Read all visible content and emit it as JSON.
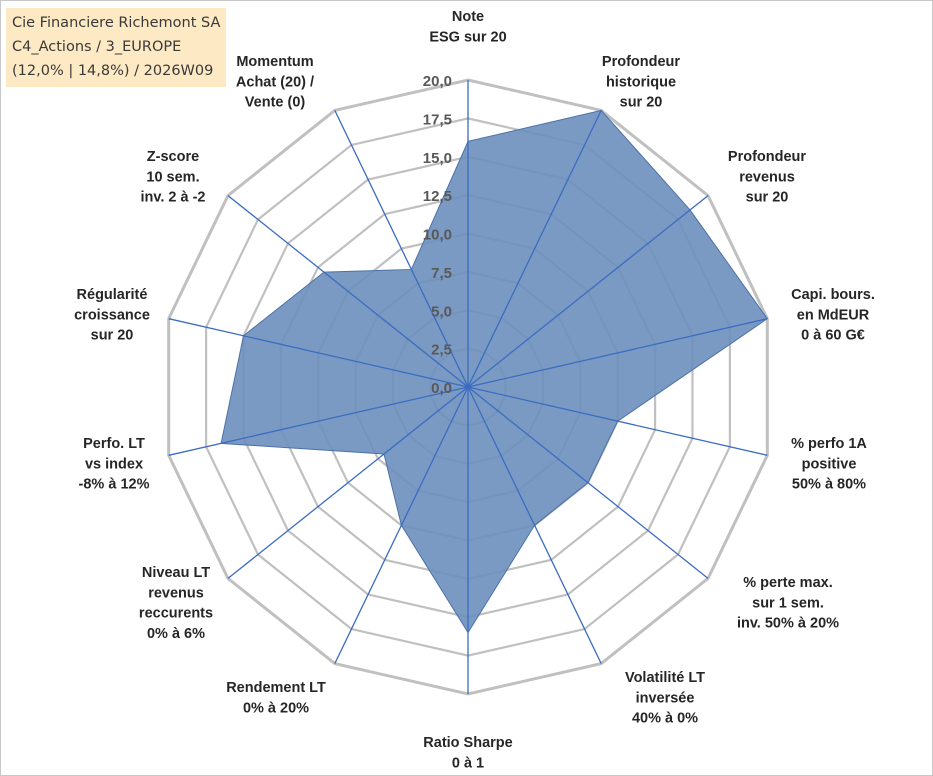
{
  "title": {
    "line1": "Cie Financiere Richemont SA",
    "line2": "C4_Actions / 3_EUROPE",
    "line3": "(12,0% | 14,8%) / 2026W09"
  },
  "chart_data": {
    "type": "radar",
    "r_range": [
      0,
      20
    ],
    "ticks": [
      0,
      2.5,
      5,
      7.5,
      10,
      12.5,
      15,
      17.5,
      20
    ],
    "tick_labels": [
      "0,0",
      "2,5",
      "5,0",
      "7,5",
      "10,0",
      "12,5",
      "15,0",
      "17,5",
      "20,0"
    ],
    "axes": [
      {
        "label": [
          "Note",
          "ESG sur 20"
        ],
        "value": 16.0
      },
      {
        "label": [
          "Profondeur",
          "historique",
          "sur 20"
        ],
        "value": 20.0
      },
      {
        "label": [
          "Profondeur",
          "revenus",
          "sur 20"
        ],
        "value": 18.5
      },
      {
        "label": [
          "Capi. bours.",
          "en MdEUR",
          "0 à 60 G€"
        ],
        "value": 20.0
      },
      {
        "label": [
          "% perfo 1A",
          "positive",
          "50% à 80%"
        ],
        "value": 10.0
      },
      {
        "label": [
          "% perte max.",
          "sur 1 sem.",
          "inv. 50% à 20%"
        ],
        "value": 10.0
      },
      {
        "label": [
          "Volatilité LT",
          "inversée",
          "40% à 0%"
        ],
        "value": 10.0
      },
      {
        "label": [
          "Ratio Sharpe",
          "0 à 1"
        ],
        "value": 16.0
      },
      {
        "label": [
          "Rendement LT",
          "0% à 20%"
        ],
        "value": 10.0
      },
      {
        "label": [
          "Niveau LT",
          "revenus",
          "reccurents",
          "0% à 6%"
        ],
        "value": 7.0
      },
      {
        "label": [
          "Perfo. LT",
          "vs index",
          "-8% à 12%"
        ],
        "value": 16.5
      },
      {
        "label": [
          "Régularité",
          "croissance",
          "sur 20"
        ],
        "value": 15.0
      },
      {
        "label": [
          "Z-score",
          "10 sem.",
          "inv. 2 à -2"
        ],
        "value": 12.0
      },
      {
        "label": [
          "Momentum",
          "Achat (20) /",
          "Vente (0)"
        ],
        "value": 8.5
      }
    ],
    "colors": {
      "fill": "#6b8fbd",
      "fill_opacity": 0.9,
      "spoke": "#3a6cc2",
      "grid": "#c0c0c0"
    }
  }
}
